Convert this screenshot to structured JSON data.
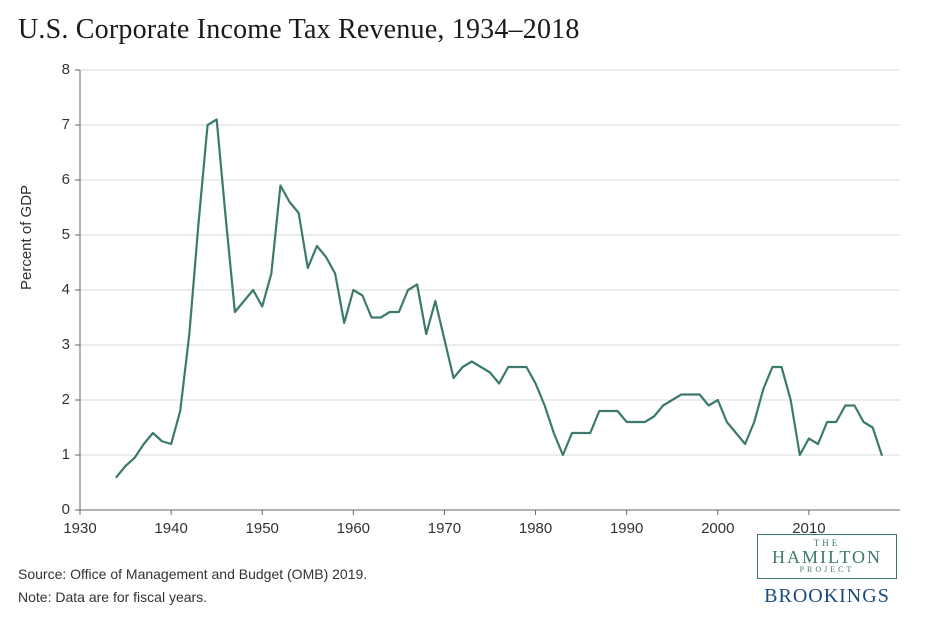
{
  "title": "U.S. Corporate Income Tax Revenue, 1934–2018",
  "ylabel": "Percent of GDP",
  "source_line": "Source: Office of Management and Budget (OMB) 2019.",
  "note_line": "Note: Data are for fiscal years.",
  "logo": {
    "the": "THE",
    "hamilton": "HAMILTON",
    "project": "PROJECT",
    "brookings": "BROOKINGS"
  },
  "chart": {
    "type": "line",
    "xlim": [
      1930,
      2020
    ],
    "ylim": [
      0,
      8
    ],
    "xticks": [
      1930,
      1940,
      1950,
      1960,
      1970,
      1980,
      1990,
      2000,
      2010
    ],
    "yticks": [
      0,
      1,
      2,
      3,
      4,
      5,
      6,
      7,
      8
    ],
    "show_x_gridlines": false,
    "show_y_gridlines": true,
    "grid_color": "#d9d9d9",
    "axis_color": "#666666",
    "background_color": "#ffffff",
    "line_color": "#3b7a6d",
    "line_width": 2.2,
    "tick_fontsize": 15,
    "title_fontsize": 28,
    "label_fontsize": 15,
    "series": {
      "years": [
        1934,
        1935,
        1936,
        1937,
        1938,
        1939,
        1940,
        1941,
        1942,
        1943,
        1944,
        1945,
        1946,
        1947,
        1948,
        1949,
        1950,
        1951,
        1952,
        1953,
        1954,
        1955,
        1956,
        1957,
        1958,
        1959,
        1960,
        1961,
        1962,
        1963,
        1964,
        1965,
        1966,
        1967,
        1968,
        1969,
        1970,
        1971,
        1972,
        1973,
        1974,
        1975,
        1976,
        1977,
        1978,
        1979,
        1980,
        1981,
        1982,
        1983,
        1984,
        1985,
        1986,
        1987,
        1988,
        1989,
        1990,
        1991,
        1992,
        1993,
        1994,
        1995,
        1996,
        1997,
        1998,
        1999,
        2000,
        2001,
        2002,
        2003,
        2004,
        2005,
        2006,
        2007,
        2008,
        2009,
        2010,
        2011,
        2012,
        2013,
        2014,
        2015,
        2016,
        2017,
        2018
      ],
      "values": [
        0.6,
        0.8,
        0.95,
        1.2,
        1.4,
        1.25,
        1.2,
        1.8,
        3.2,
        5.2,
        7.0,
        7.1,
        5.3,
        3.6,
        3.8,
        4.0,
        3.7,
        4.3,
        5.9,
        5.6,
        5.4,
        4.4,
        4.8,
        4.6,
        4.3,
        3.4,
        4.0,
        3.9,
        3.5,
        3.5,
        3.6,
        3.6,
        4.0,
        4.1,
        3.2,
        3.8,
        3.1,
        2.4,
        2.6,
        2.7,
        2.6,
        2.5,
        2.3,
        2.6,
        2.6,
        2.6,
        2.3,
        1.9,
        1.4,
        1.0,
        1.4,
        1.4,
        1.4,
        1.8,
        1.8,
        1.8,
        1.6,
        1.6,
        1.6,
        1.7,
        1.9,
        2.0,
        2.1,
        2.1,
        2.1,
        1.9,
        2.0,
        1.6,
        1.4,
        1.2,
        1.6,
        2.2,
        2.6,
        2.6,
        2.0,
        1.0,
        1.3,
        1.2,
        1.6,
        1.6,
        1.9,
        1.9,
        1.6,
        1.5,
        1.0
      ]
    }
  }
}
